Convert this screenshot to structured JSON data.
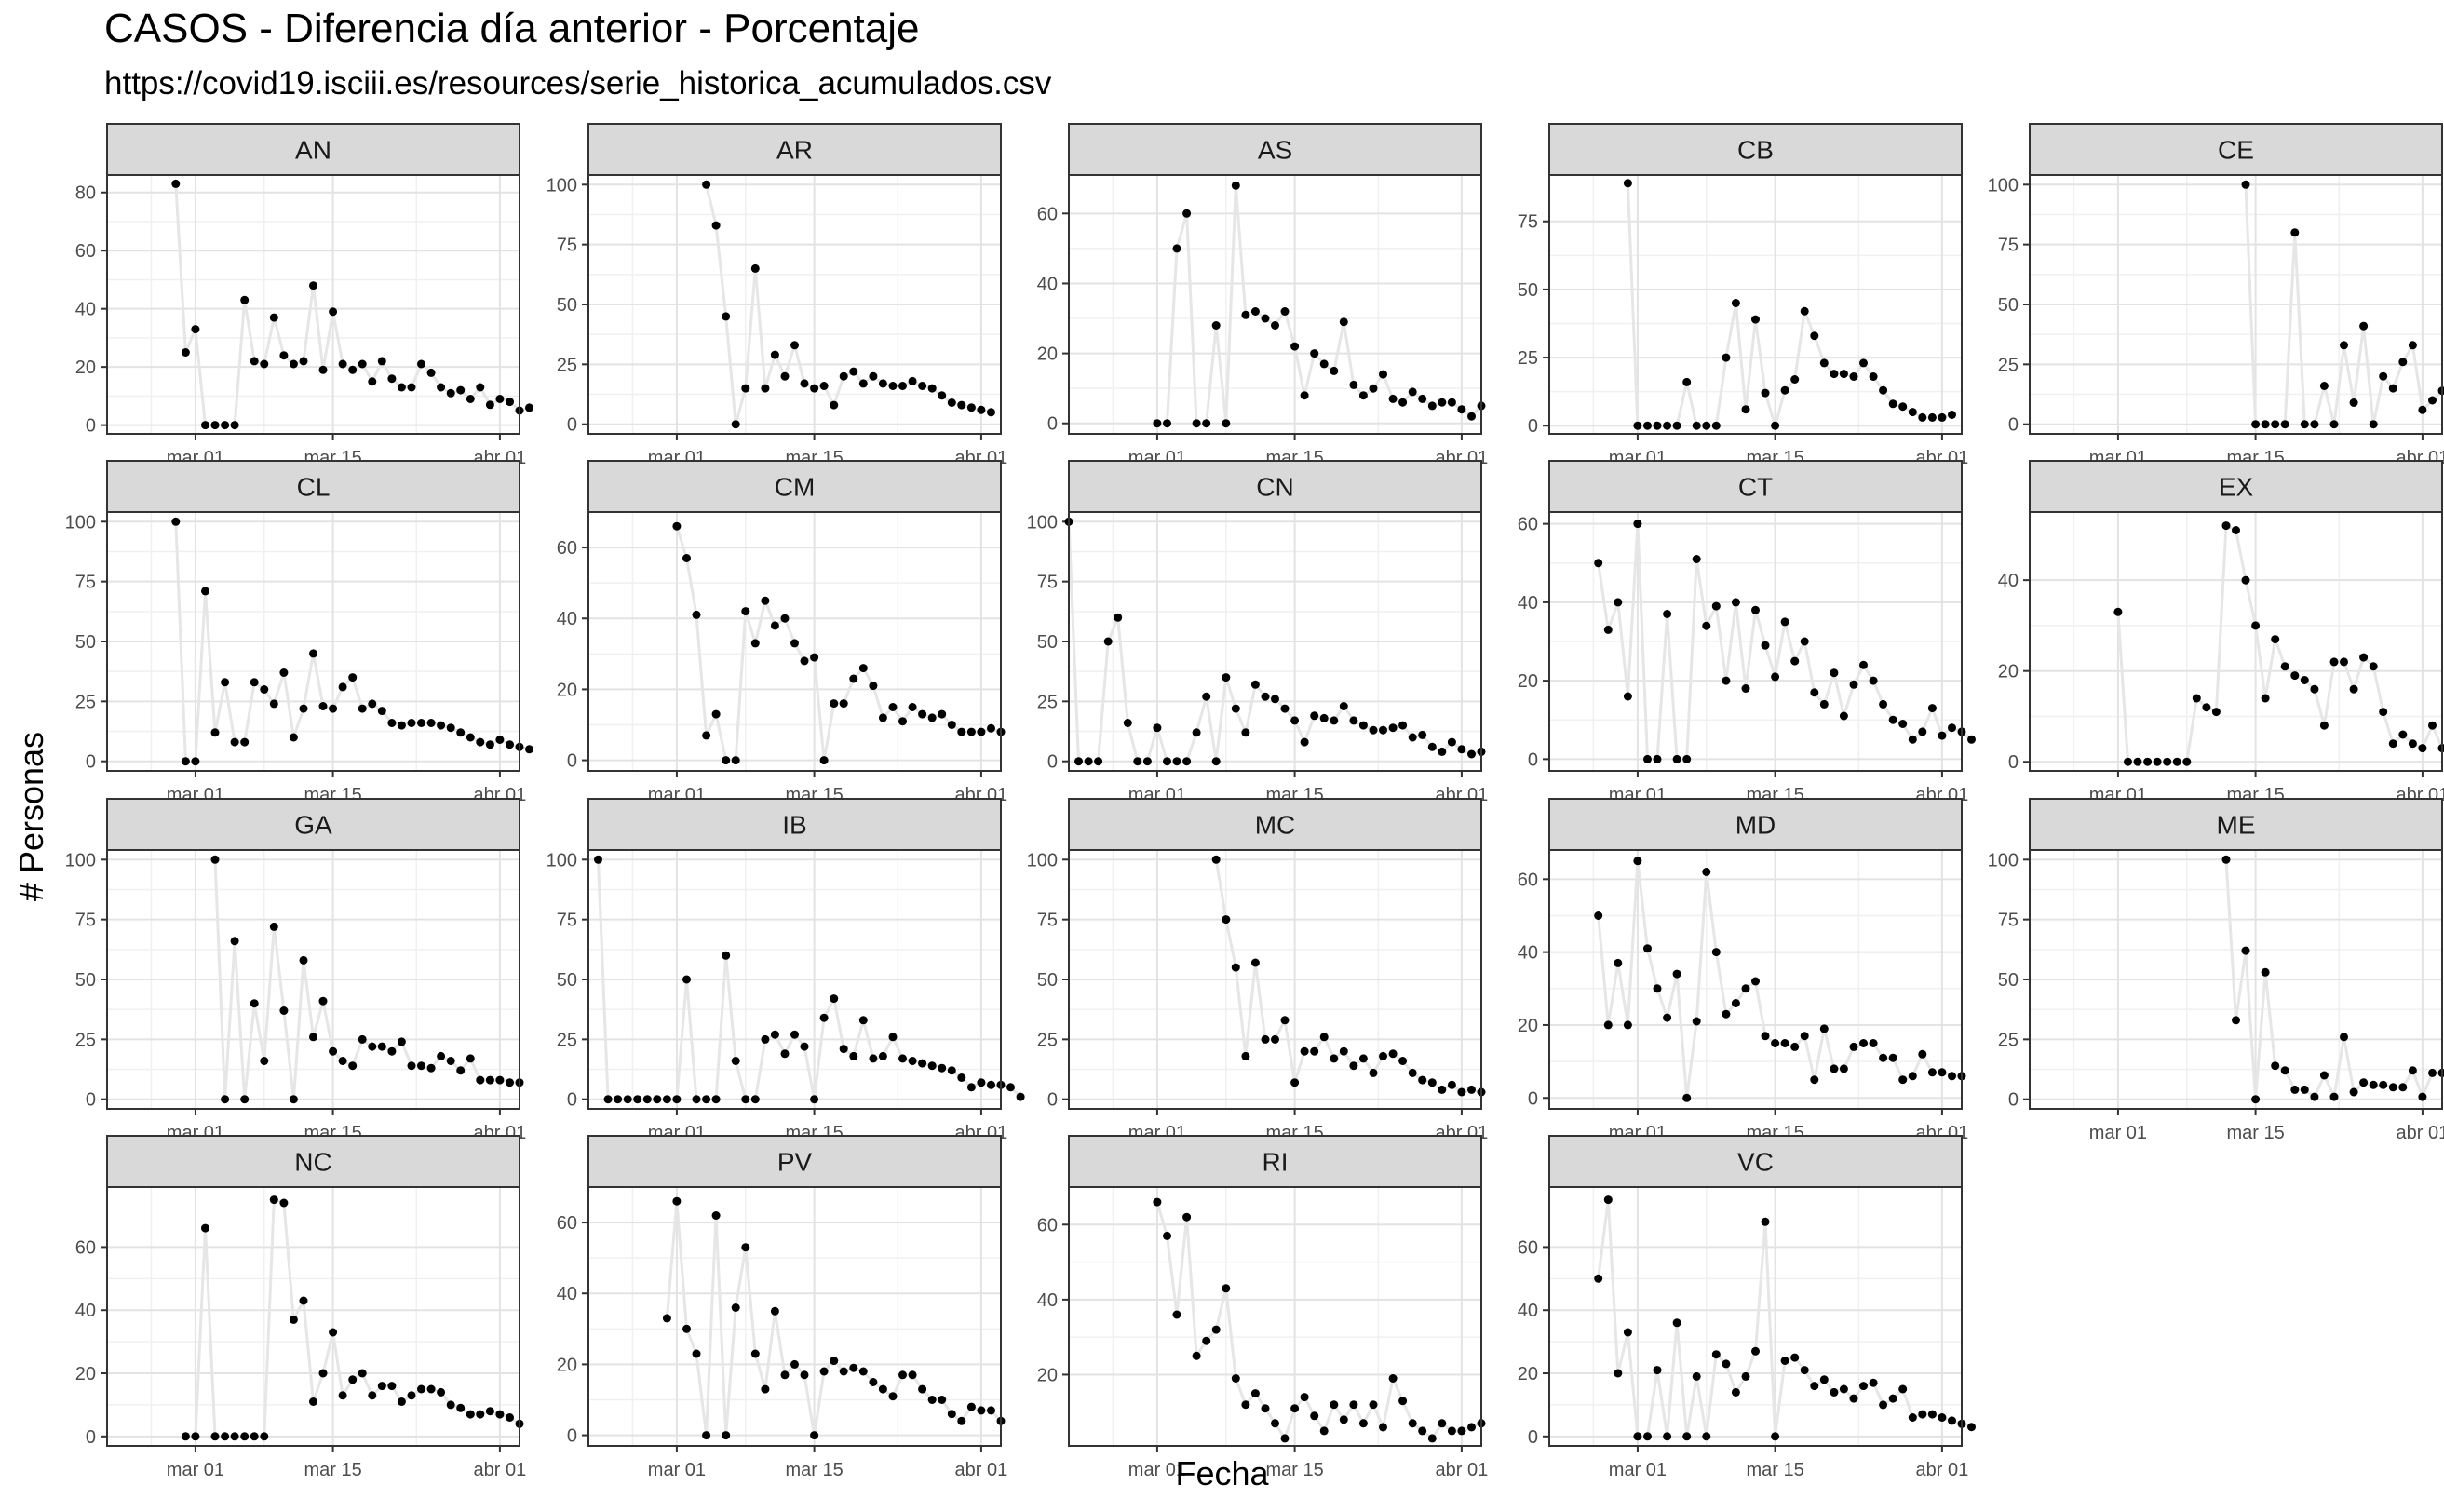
{
  "chart_data": {
    "type": "scatter",
    "title": "CASOS - Diferencia día anterior - Porcentaje",
    "subtitle": "https://covid19.isciii.es/resources/serie_historica_acumulados.csv",
    "xlabel": "Fecha",
    "ylabel": "# Personas",
    "x_ticks": [
      "mar 01",
      "mar 15",
      "abr 01"
    ],
    "x_tick_days": [
      0,
      14,
      31
    ],
    "xlim_days": [
      -9,
      33
    ],
    "facet_grid": {
      "columns": 5,
      "rows": 4
    },
    "line_color": "#e6e6e6",
    "point_color": "#000000",
    "strip_fill": "#d9d9d9",
    "facets": [
      {
        "name": "AN",
        "ylim": [
          -3,
          86
        ],
        "yticks": [
          0,
          20,
          40,
          60,
          80
        ],
        "start_day": -2,
        "values": [
          83,
          25,
          33,
          0,
          0,
          0,
          0,
          43,
          22,
          21,
          37,
          24,
          21,
          22,
          48,
          19,
          39,
          21,
          19,
          21,
          15,
          22,
          16,
          13,
          13,
          21,
          18,
          13,
          11,
          12,
          9,
          13,
          7,
          9,
          8,
          5,
          6
        ]
      },
      {
        "name": "AR",
        "ylim": [
          -4,
          104
        ],
        "yticks": [
          0,
          25,
          50,
          75,
          100
        ],
        "start_day": 3,
        "values": [
          100,
          83,
          45,
          0,
          15,
          65,
          15,
          29,
          20,
          33,
          17,
          15,
          16,
          8,
          20,
          22,
          17,
          20,
          17,
          16,
          16,
          18,
          16,
          15,
          12,
          9,
          8,
          7,
          6,
          5
        ]
      },
      {
        "name": "AS",
        "ylim": [
          -3,
          71
        ],
        "yticks": [
          0,
          20,
          40,
          60
        ],
        "start_day": 0,
        "values": [
          0,
          0,
          50,
          60,
          0,
          0,
          28,
          0,
          68,
          31,
          32,
          30,
          28,
          32,
          22,
          8,
          20,
          17,
          15,
          29,
          11,
          8,
          10,
          14,
          7,
          6,
          9,
          7,
          5,
          6,
          6,
          4,
          2,
          5
        ]
      },
      {
        "name": "CB",
        "ylim": [
          -3,
          92
        ],
        "yticks": [
          0,
          25,
          50,
          75
        ],
        "start_day": -1,
        "values": [
          89,
          0,
          0,
          0,
          0,
          0,
          16,
          0,
          0,
          0,
          25,
          45,
          6,
          39,
          12,
          0,
          13,
          17,
          42,
          33,
          23,
          19,
          19,
          18,
          23,
          18,
          13,
          8,
          7,
          5,
          3,
          3,
          3,
          4
        ]
      },
      {
        "name": "CE",
        "ylim": [
          -4,
          104
        ],
        "yticks": [
          0,
          25,
          50,
          75,
          100
        ],
        "start_day": 13,
        "values": [
          100,
          0,
          0,
          0,
          0,
          80,
          0,
          0,
          16,
          0,
          33,
          9,
          41,
          0,
          20,
          15,
          26,
          33,
          6,
          10,
          14
        ]
      },
      {
        "name": "CL",
        "ylim": [
          -4,
          104
        ],
        "yticks": [
          0,
          25,
          50,
          75,
          100
        ],
        "start_day": -2,
        "values": [
          100,
          0,
          0,
          71,
          12,
          33,
          8,
          8,
          33,
          30,
          24,
          37,
          10,
          22,
          45,
          23,
          22,
          31,
          35,
          22,
          24,
          21,
          16,
          15,
          16,
          16,
          16,
          15,
          14,
          12,
          10,
          8,
          7,
          9,
          7,
          6,
          5
        ]
      },
      {
        "name": "CM",
        "ylim": [
          -3,
          70
        ],
        "yticks": [
          0,
          20,
          40,
          60
        ],
        "start_day": 0,
        "values": [
          66,
          57,
          41,
          7,
          13,
          0,
          0,
          42,
          33,
          45,
          38,
          40,
          33,
          28,
          29,
          0,
          16,
          16,
          23,
          26,
          21,
          12,
          15,
          11,
          15,
          13,
          12,
          13,
          10,
          8,
          8,
          8,
          9,
          8
        ]
      },
      {
        "name": "CN",
        "ylim": [
          -4,
          104
        ],
        "yticks": [
          0,
          25,
          50,
          75,
          100
        ],
        "start_day": -9,
        "values": [
          100,
          0,
          0,
          0,
          50,
          60,
          16,
          0,
          0,
          14,
          0,
          0,
          0,
          12,
          27,
          0,
          35,
          22,
          12,
          32,
          27,
          26,
          22,
          17,
          8,
          19,
          18,
          17,
          23,
          17,
          15,
          13,
          13,
          14,
          15,
          10,
          11,
          6,
          4,
          8,
          5,
          3,
          4
        ]
      },
      {
        "name": "CT",
        "ylim": [
          -3,
          63
        ],
        "yticks": [
          0,
          20,
          40,
          60
        ],
        "start_day": -4,
        "values": [
          50,
          33,
          40,
          16,
          60,
          0,
          0,
          37,
          0,
          0,
          51,
          34,
          39,
          20,
          40,
          18,
          38,
          29,
          21,
          35,
          25,
          30,
          17,
          14,
          22,
          11,
          19,
          24,
          20,
          14,
          10,
          9,
          5,
          7,
          13,
          6,
          8,
          7,
          5
        ]
      },
      {
        "name": "EX",
        "ylim": [
          -2,
          55
        ],
        "yticks": [
          0,
          20,
          40
        ],
        "start_day": 0,
        "values": [
          33,
          0,
          0,
          0,
          0,
          0,
          0,
          0,
          14,
          12,
          11,
          52,
          51,
          40,
          30,
          14,
          27,
          21,
          19,
          18,
          16,
          8,
          22,
          22,
          16,
          23,
          21,
          11,
          4,
          6,
          4,
          3,
          8,
          3,
          4
        ]
      },
      {
        "name": "GA",
        "ylim": [
          -4,
          104
        ],
        "yticks": [
          0,
          25,
          50,
          75,
          100
        ],
        "start_day": 2,
        "values": [
          100,
          0,
          66,
          0,
          40,
          16,
          72,
          37,
          0,
          58,
          26,
          41,
          20,
          16,
          14,
          25,
          22,
          22,
          20,
          24,
          14,
          14,
          13,
          18,
          16,
          12,
          17,
          8,
          8,
          8,
          7,
          7
        ]
      },
      {
        "name": "IB",
        "ylim": [
          -4,
          104
        ],
        "yticks": [
          0,
          25,
          50,
          75,
          100
        ],
        "start_day": -8,
        "values": [
          100,
          0,
          0,
          0,
          0,
          0,
          0,
          0,
          0,
          50,
          0,
          0,
          0,
          60,
          16,
          0,
          0,
          25,
          27,
          19,
          27,
          22,
          0,
          34,
          42,
          21,
          18,
          33,
          17,
          18,
          26,
          17,
          16,
          15,
          14,
          13,
          12,
          9,
          5,
          7,
          6,
          6,
          5,
          1
        ]
      },
      {
        "name": "MC",
        "ylim": [
          -4,
          104
        ],
        "yticks": [
          0,
          25,
          50,
          75,
          100
        ],
        "start_day": 6,
        "values": [
          100,
          75,
          55,
          18,
          57,
          25,
          25,
          33,
          7,
          20,
          20,
          26,
          17,
          20,
          14,
          17,
          11,
          18,
          19,
          16,
          11,
          8,
          7,
          4,
          6,
          3,
          4,
          3
        ]
      },
      {
        "name": "MD",
        "ylim": [
          -3,
          68
        ],
        "yticks": [
          0,
          20,
          40,
          60
        ],
        "start_day": -4,
        "values": [
          50,
          20,
          37,
          20,
          65,
          41,
          30,
          22,
          34,
          0,
          21,
          62,
          40,
          23,
          26,
          30,
          32,
          17,
          15,
          15,
          14,
          17,
          5,
          19,
          8,
          8,
          14,
          15,
          15,
          11,
          11,
          5,
          6,
          12,
          7,
          7,
          6,
          6
        ]
      },
      {
        "name": "ME",
        "ylim": [
          -4,
          104
        ],
        "yticks": [
          0,
          25,
          50,
          75,
          100
        ],
        "start_day": 11,
        "values": [
          100,
          33,
          62,
          0,
          53,
          14,
          12,
          4,
          4,
          1,
          10,
          1,
          26,
          3,
          7,
          6,
          6,
          5,
          5,
          12,
          1,
          11,
          11
        ]
      },
      {
        "name": "NC",
        "ylim": [
          -3,
          79
        ],
        "yticks": [
          0,
          20,
          40,
          60
        ],
        "start_day": -1,
        "values": [
          0,
          0,
          66,
          0,
          0,
          0,
          0,
          0,
          0,
          75,
          74,
          37,
          43,
          11,
          20,
          33,
          13,
          18,
          20,
          13,
          16,
          16,
          11,
          13,
          15,
          15,
          14,
          10,
          9,
          7,
          7,
          8,
          7,
          6,
          4
        ]
      },
      {
        "name": "PV",
        "ylim": [
          -3,
          70
        ],
        "yticks": [
          0,
          20,
          40,
          60
        ],
        "start_day": -1,
        "values": [
          33,
          66,
          30,
          23,
          0,
          62,
          0,
          36,
          53,
          23,
          13,
          35,
          17,
          20,
          17,
          0,
          18,
          21,
          18,
          19,
          18,
          15,
          13,
          11,
          17,
          17,
          13,
          10,
          10,
          6,
          4,
          8,
          7,
          7,
          4
        ]
      },
      {
        "name": "RI",
        "ylim": [
          1,
          70
        ],
        "yticks": [
          20,
          40,
          60
        ],
        "start_day": 0,
        "values": [
          66,
          57,
          36,
          62,
          25,
          29,
          32,
          43,
          19,
          12,
          15,
          11,
          7,
          3,
          11,
          14,
          9,
          5,
          12,
          8,
          12,
          7,
          12,
          6,
          19,
          13,
          7,
          5,
          3,
          7,
          5,
          5,
          6,
          7
        ]
      },
      {
        "name": "VC",
        "ylim": [
          -3,
          79
        ],
        "yticks": [
          0,
          20,
          40,
          60
        ],
        "start_day": -4,
        "values": [
          50,
          75,
          20,
          33,
          0,
          0,
          21,
          0,
          36,
          0,
          19,
          0,
          26,
          23,
          14,
          19,
          27,
          68,
          0,
          24,
          25,
          21,
          16,
          18,
          14,
          15,
          12,
          16,
          17,
          10,
          12,
          15,
          6,
          7,
          7,
          6,
          5,
          4,
          3
        ]
      }
    ]
  }
}
